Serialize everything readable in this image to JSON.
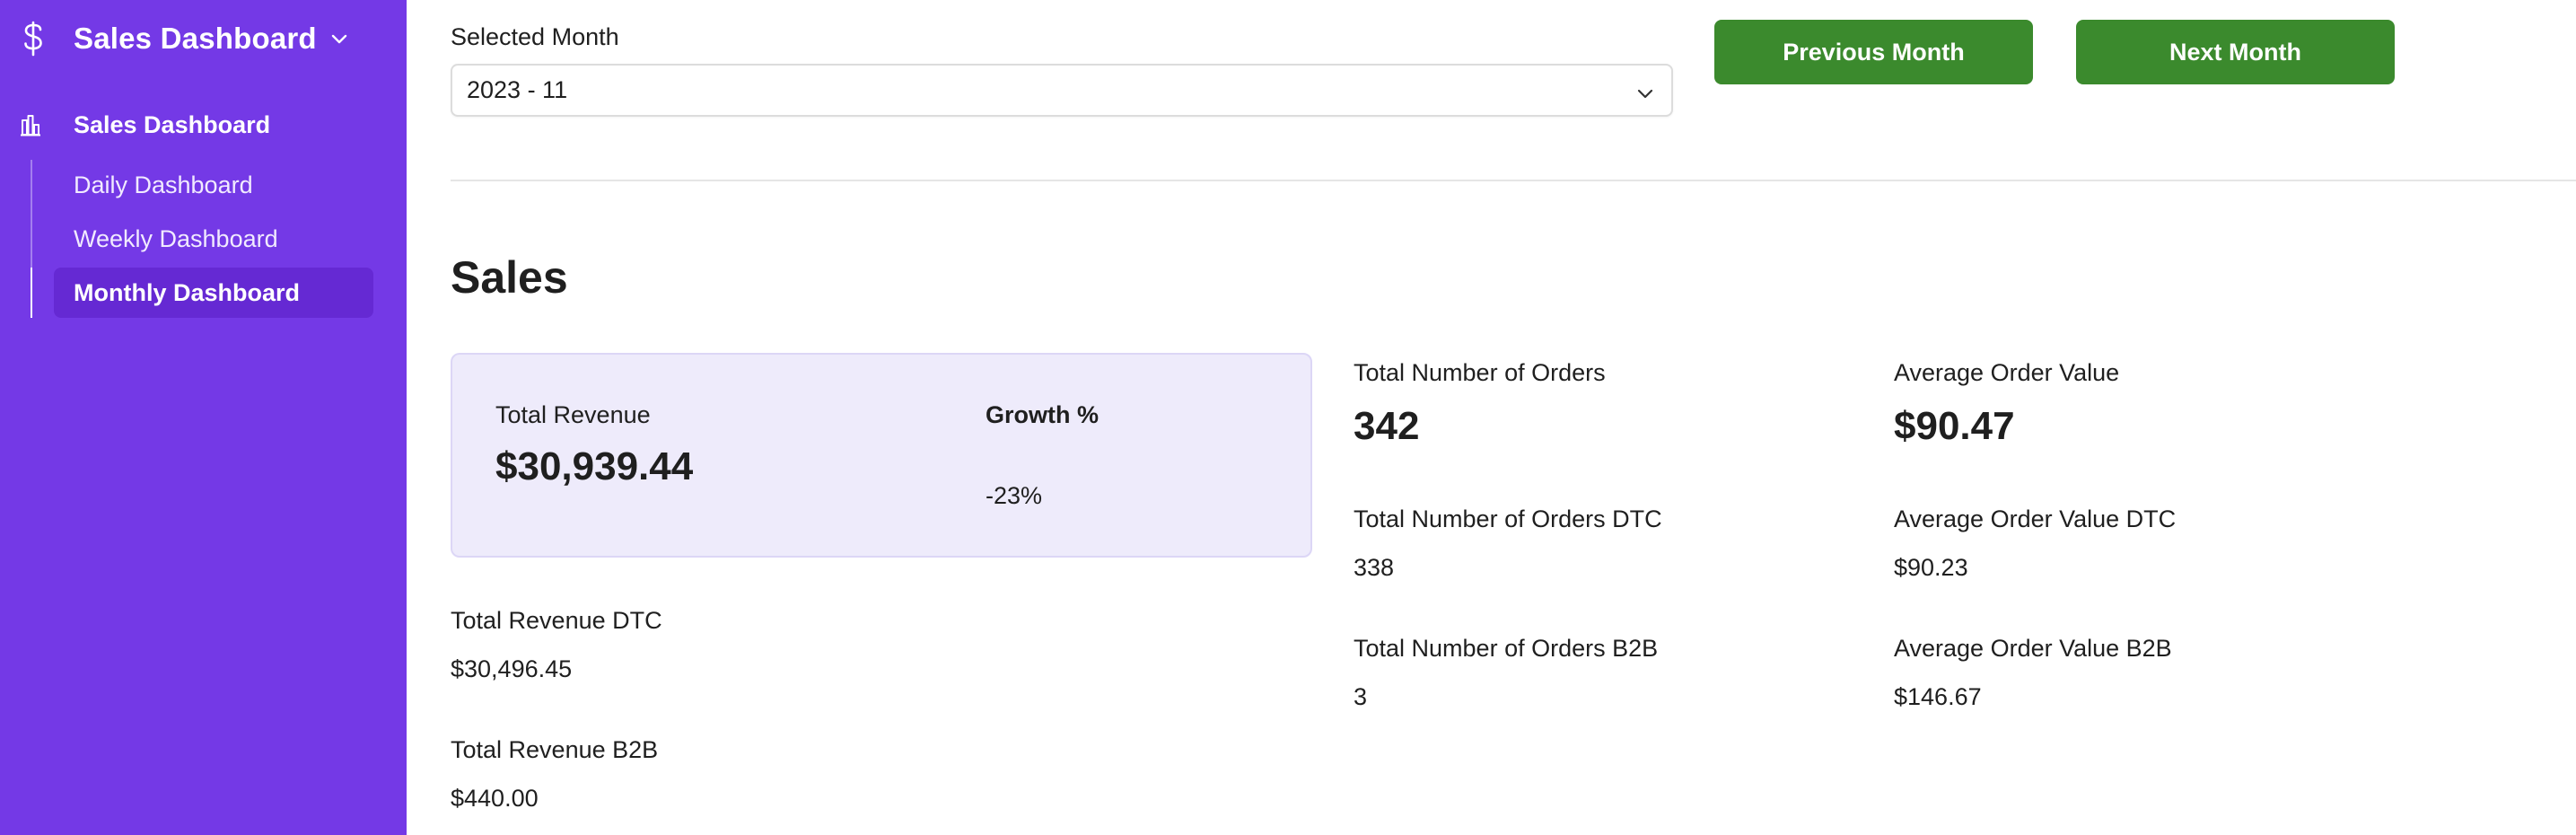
{
  "sidebar": {
    "brand_title": "Sales Dashboard",
    "brand_icon": "dollar-icon",
    "section": {
      "label": "Sales Dashboard",
      "icon": "bar-chart-icon"
    },
    "items": [
      {
        "label": "Daily Dashboard"
      },
      {
        "label": "Weekly Dashboard"
      },
      {
        "label": "Monthly Dashboard",
        "active": true
      }
    ],
    "accent_color": "#7439e6"
  },
  "controls": {
    "month_label": "Selected Month",
    "month_value": "2023 - 11",
    "prev_label": "Previous Month",
    "next_label": "Next Month",
    "button_color": "#3b8a2d"
  },
  "sales": {
    "title": "Sales",
    "total_revenue": {
      "label": "Total Revenue",
      "value": "$30,939.44"
    },
    "growth": {
      "label": "Growth %",
      "value": "-23%"
    },
    "total_revenue_dtc": {
      "label": "Total Revenue DTC",
      "value": "$30,496.45"
    },
    "total_revenue_b2b": {
      "label": "Total Revenue B2B",
      "value": "$440.00"
    },
    "orders": {
      "label": "Total Number of Orders",
      "value": "342"
    },
    "orders_dtc": {
      "label": "Total Number of Orders DTC",
      "value": "338"
    },
    "orders_b2b": {
      "label": "Total Number of Orders B2B",
      "value": "3"
    },
    "aov": {
      "label": "Average Order Value",
      "value": "$90.47"
    },
    "aov_dtc": {
      "label": "Average Order Value DTC",
      "value": "$90.23"
    },
    "aov_b2b": {
      "label": "Average Order Value B2B",
      "value": "$146.67"
    }
  }
}
